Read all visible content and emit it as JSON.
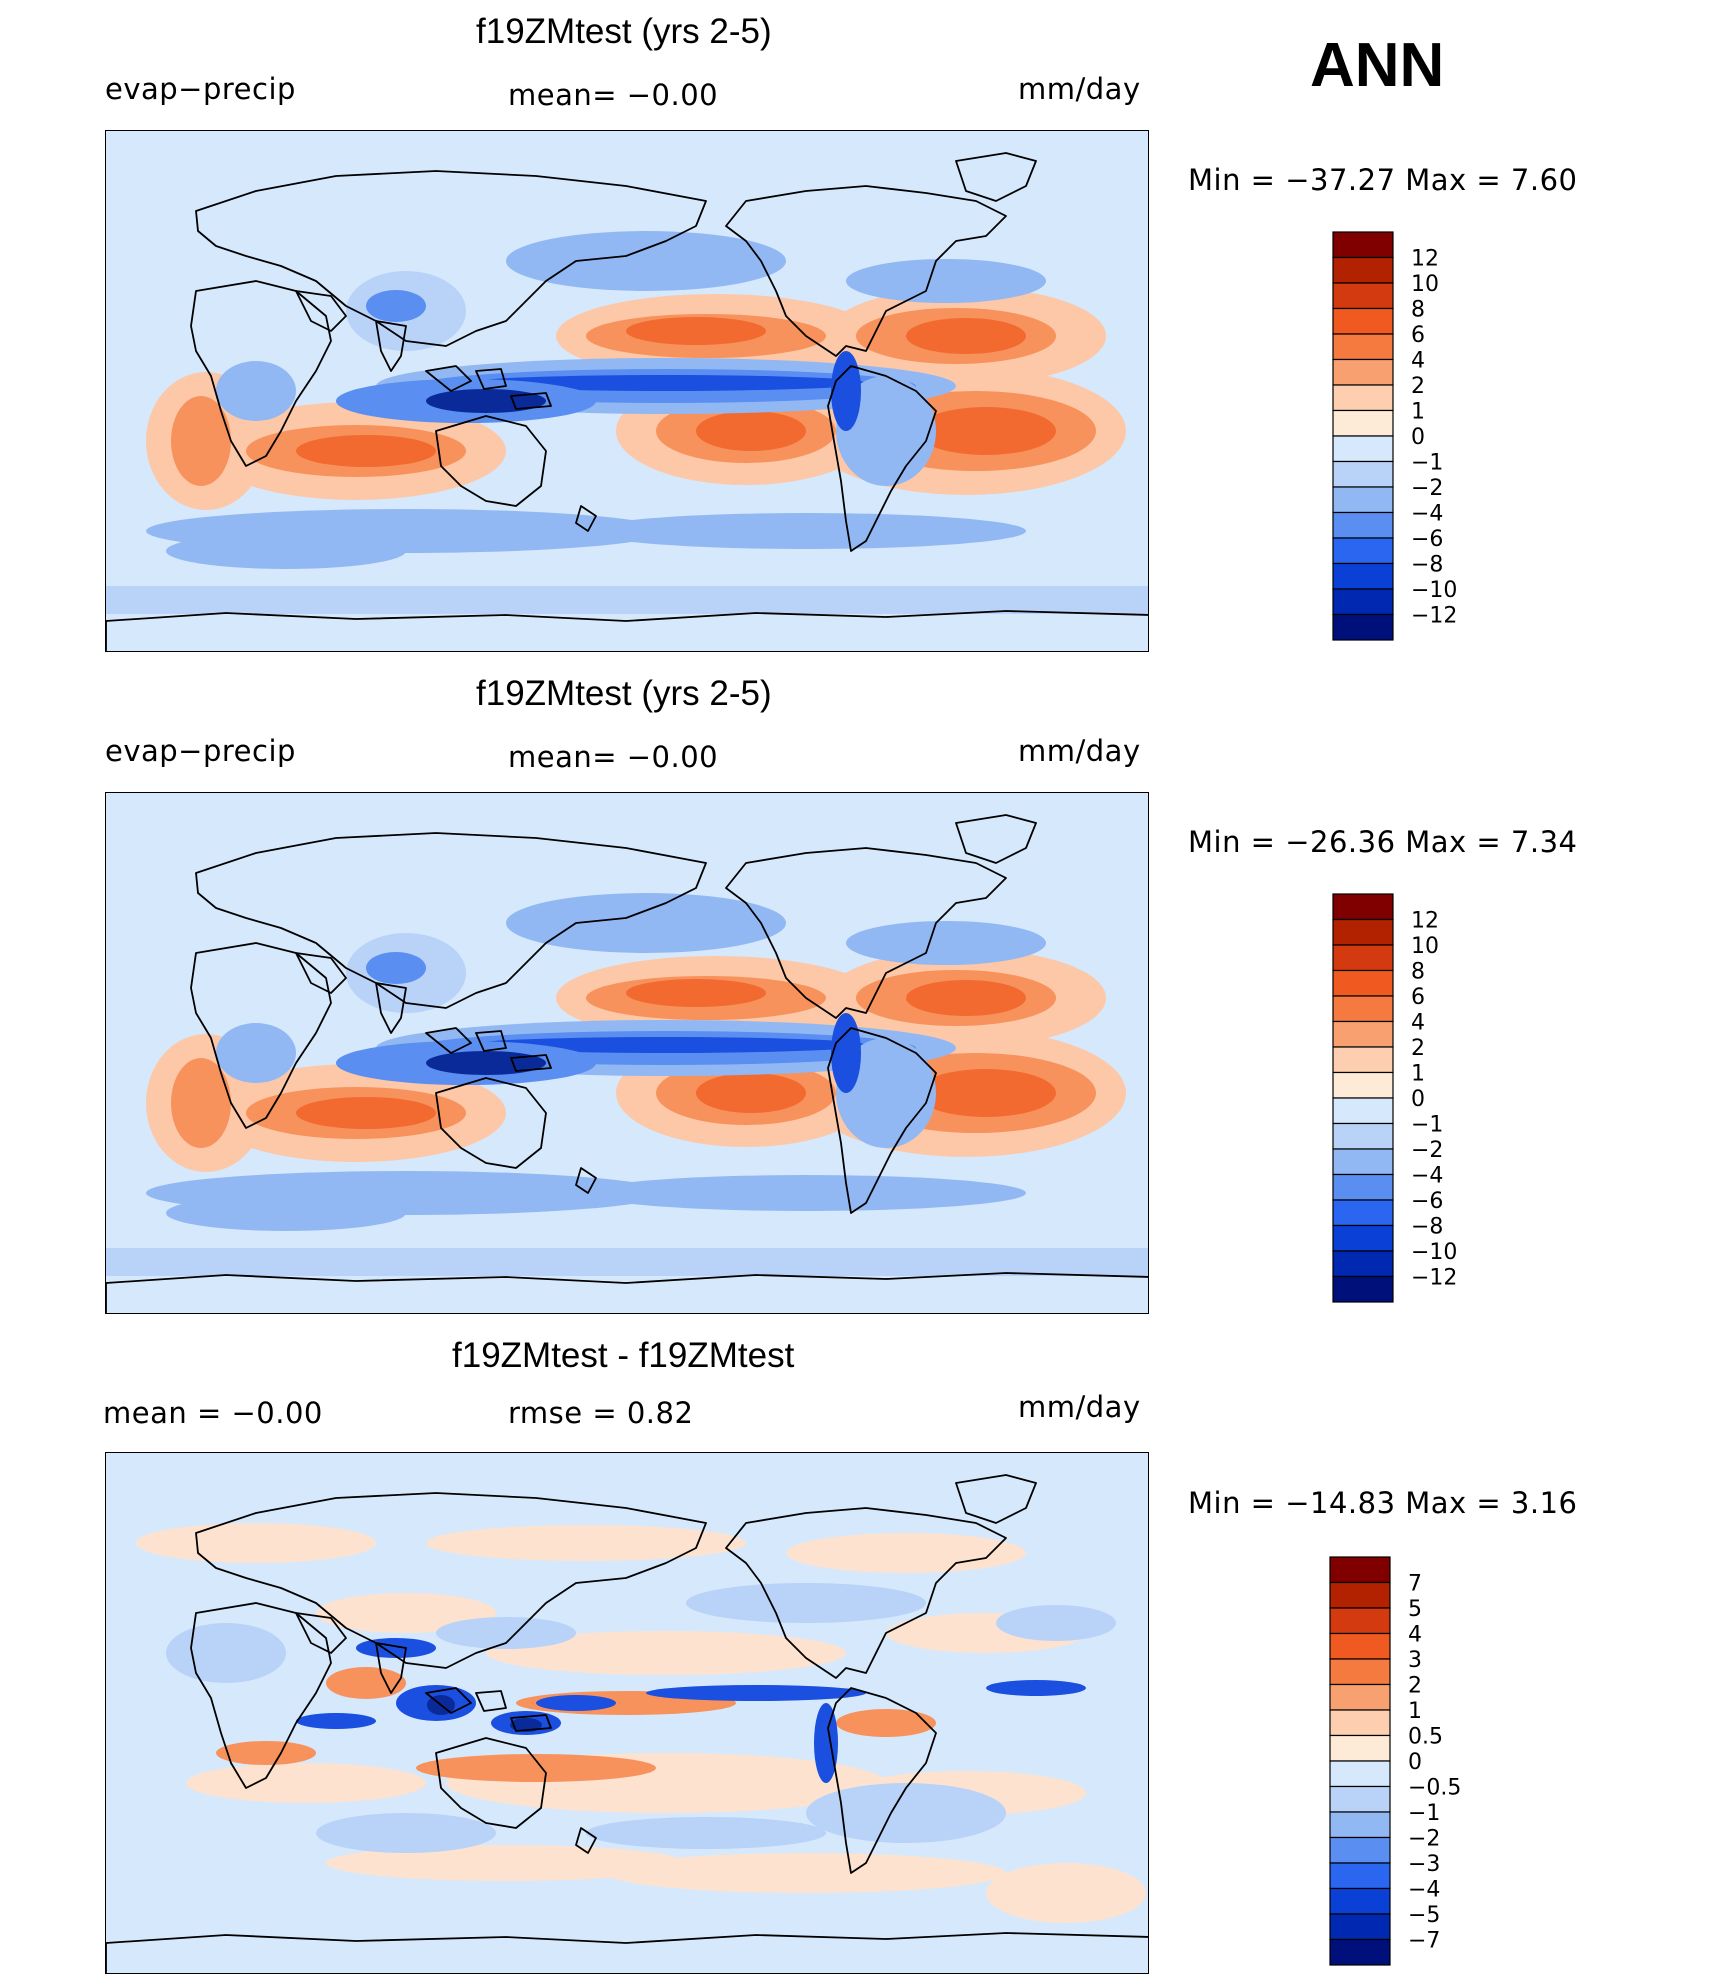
{
  "season": "ANN",
  "panels": [
    {
      "id": "test",
      "title": "f19ZMtest (yrs 2-5)",
      "left_label": "evap−precip",
      "center_label": "mean=   −0.00",
      "units": "mm/day",
      "min_max": "Min  =  −37.27  Max  =      7.60",
      "map_fill": "#d6e8fb"
    },
    {
      "id": "control",
      "title": "f19ZMtest (yrs 2-5)",
      "left_label": "evap−precip",
      "center_label": "mean=   −0.00",
      "units": "mm/day",
      "min_max": "Min  =  −26.36  Max  =      7.34",
      "map_fill": "#d6e8fb"
    },
    {
      "id": "difference",
      "title": "f19ZMtest - f19ZMtest",
      "left_label": "mean  =    −0.00",
      "center_label": "rmse  =     0.82",
      "units": "mm/day",
      "min_max": "Min  =  −14.83  Max  =      3.16",
      "map_fill": "#d6e8fb"
    }
  ],
  "colorbars": [
    {
      "labels": [
        "12",
        "10",
        "8",
        "6",
        "4",
        "2",
        "1",
        "0",
        "−1",
        "−2",
        "−4",
        "−6",
        "−8",
        "−10",
        "−12"
      ],
      "colors": [
        "#800000",
        "#b22200",
        "#d43a10",
        "#f05a20",
        "#f57a40",
        "#f9a070",
        "#fdcfb0",
        "#fdebd8",
        "#d6e8fb",
        "#b8d2f8",
        "#92b8f4",
        "#5a8ef0",
        "#2a66ef",
        "#0a40d6",
        "#0028b0",
        "#00107a"
      ]
    },
    {
      "labels": [
        "12",
        "10",
        "8",
        "6",
        "4",
        "2",
        "1",
        "0",
        "−1",
        "−2",
        "−4",
        "−6",
        "−8",
        "−10",
        "−12"
      ],
      "colors": [
        "#800000",
        "#b22200",
        "#d43a10",
        "#f05a20",
        "#f57a40",
        "#f9a070",
        "#fdcfb0",
        "#fdebd8",
        "#d6e8fb",
        "#b8d2f8",
        "#92b8f4",
        "#5a8ef0",
        "#2a66ef",
        "#0a40d6",
        "#0028b0",
        "#00107a"
      ]
    },
    {
      "labels": [
        "7",
        "5",
        "4",
        "3",
        "2",
        "1",
        "0.5",
        "0",
        "−0.5",
        "−1",
        "−2",
        "−3",
        "−4",
        "−5",
        "−7"
      ],
      "colors": [
        "#800000",
        "#b22200",
        "#d43a10",
        "#f05a20",
        "#f57a40",
        "#f9a070",
        "#fdcfb0",
        "#fdebd8",
        "#d6e8fb",
        "#b8d2f8",
        "#92b8f4",
        "#5a8ef0",
        "#2a66ef",
        "#0a40d6",
        "#0028b0",
        "#00107a"
      ]
    }
  ],
  "field_colors": {
    "dry_strong": "#f26a30",
    "dry_mid": "#f7925c",
    "dry_weak": "#fcc8a8",
    "dry_faint": "#fde3cf",
    "wet_faint": "#b8d2f8",
    "wet_weak": "#92b8f4",
    "wet_mid": "#5a8ef0",
    "wet_strong": "#1a4fe0",
    "wet_deep": "#0a2a9a",
    "coast": "#000000"
  }
}
